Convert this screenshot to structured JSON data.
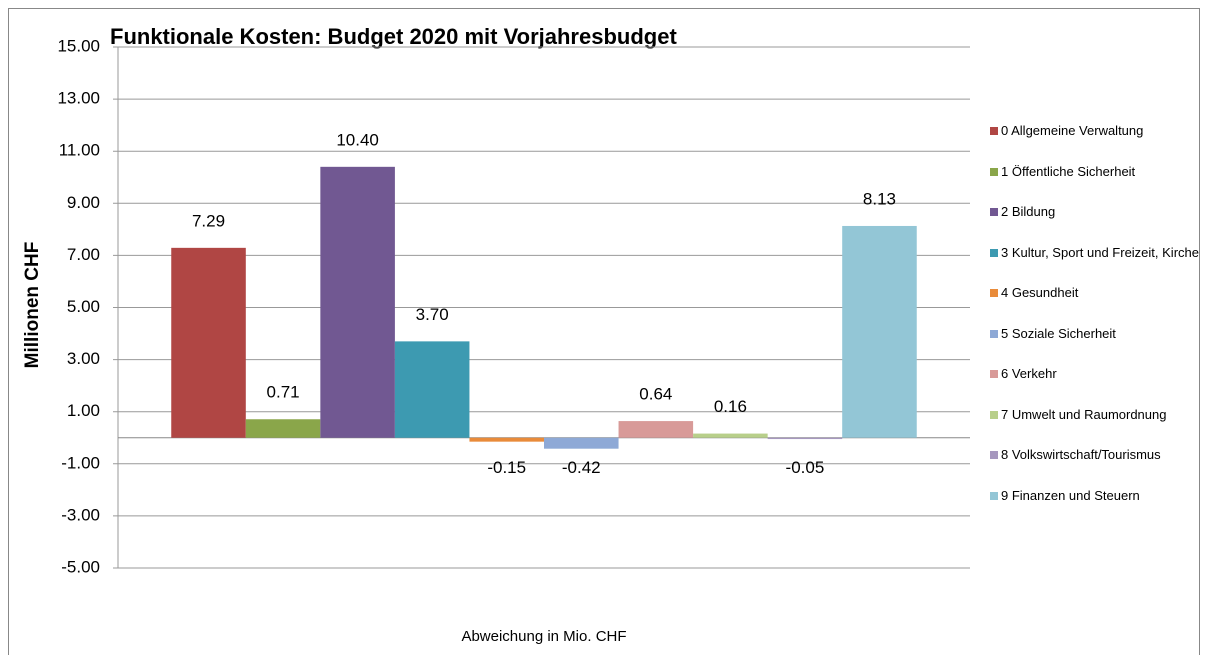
{
  "chart_data": {
    "type": "bar",
    "title": "Funktionale Kosten: Budget 2020 mit Vorjahresbudget",
    "y_label": "Millionen CHF",
    "categories": [
      "Abweichung in Mio. CHF"
    ],
    "series": [
      {
        "name": "0 Allgemeine Verwaltung",
        "color": "#b04644",
        "values": [
          7.29
        ],
        "value_labels": [
          "7.29"
        ]
      },
      {
        "name": "1 Öffentliche Sicherheit",
        "color": "#8aa64a",
        "values": [
          0.71
        ],
        "value_labels": [
          "0.71"
        ]
      },
      {
        "name": "2 Bildung",
        "color": "#715892",
        "values": [
          10.4
        ],
        "value_labels": [
          "10.40"
        ]
      },
      {
        "name": "3 Kultur, Sport und Freizeit, Kirche",
        "color": "#3d9ab1",
        "values": [
          3.7
        ],
        "value_labels": [
          "3.70"
        ]
      },
      {
        "name": "4 Gesundheit",
        "color": "#e98b3a",
        "values": [
          -0.15
        ],
        "value_labels": [
          "-0.15"
        ]
      },
      {
        "name": "5 Soziale Sicherheit",
        "color": "#8ea9d6",
        "values": [
          -0.42
        ],
        "value_labels": [
          "-0.42"
        ]
      },
      {
        "name": "6 Verkehr",
        "color": "#d89a98",
        "values": [
          0.64
        ],
        "value_labels": [
          "0.64"
        ]
      },
      {
        "name": "7 Umwelt und Raumordnung",
        "color": "#b8cf8a",
        "values": [
          0.16
        ],
        "value_labels": [
          "0.16"
        ]
      },
      {
        "name": "8 Volkswirtschaft/Tourismus",
        "color": "#a697be",
        "values": [
          -0.05
        ],
        "value_labels": [
          "-0.05"
        ]
      },
      {
        "name": "9 Finanzen und Steuern",
        "color": "#93c6d6",
        "values": [
          8.13
        ],
        "value_labels": [
          "8.13"
        ]
      }
    ],
    "ylim": [
      -5,
      15
    ],
    "yticks": [
      {
        "value": 15,
        "label": "15.00"
      },
      {
        "value": 13,
        "label": "13.00"
      },
      {
        "value": 11,
        "label": "11.00"
      },
      {
        "value": 9,
        "label": "9.00"
      },
      {
        "value": 7,
        "label": "7.00"
      },
      {
        "value": 5,
        "label": "5.00"
      },
      {
        "value": 3,
        "label": "3.00"
      },
      {
        "value": 1,
        "label": "1.00"
      },
      {
        "value": -1,
        "label": "-1.00"
      },
      {
        "value": -3,
        "label": "-3.00"
      },
      {
        "value": -5,
        "label": "-5.00"
      }
    ],
    "grid": true,
    "legend": "right"
  }
}
